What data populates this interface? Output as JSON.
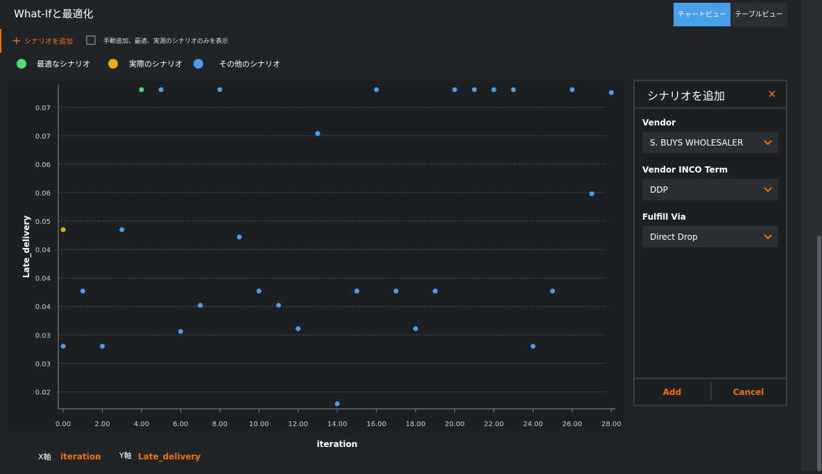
{
  "header": {
    "title": "What-Ifと最適化",
    "views": [
      "チャートビュー",
      "テーブルビュー"
    ]
  },
  "toolbar": {
    "add_scenario": "シナリオを追加",
    "filter_label": "手動追加、最適、実測のシナリオのみを表示"
  },
  "chart_data": {
    "type": "scatter",
    "xlabel": "iteration",
    "ylabel": "Late_delivery",
    "series": [
      {
        "name": "最適なシナリオ",
        "color": "#4fdc7a",
        "x": [
          4
        ],
        "values": [
          0.0731
        ]
      },
      {
        "name": "実際のシナリオ",
        "color": "#e0b015",
        "x": [
          0
        ],
        "values": [
          0.0485
        ]
      },
      {
        "name": "その他のシナリオ",
        "color": "#4a9fea",
        "x": [
          0,
          1,
          2,
          3,
          5,
          6,
          7,
          8,
          9,
          10,
          11,
          12,
          13,
          14,
          15,
          16,
          17,
          18,
          19,
          20,
          21,
          22,
          23,
          24,
          25,
          26,
          27,
          28
        ],
        "values": [
          0.028,
          0.0377,
          0.028,
          0.0485,
          0.0731,
          0.0306,
          0.0352,
          0.0731,
          0.0472,
          0.0377,
          0.0352,
          0.0311,
          0.0654,
          0.0179,
          0.0377,
          0.0731,
          0.0377,
          0.0311,
          0.0377,
          0.0731,
          0.0731,
          0.0731,
          0.0731,
          0.028,
          0.0377,
          0.0731,
          0.0548,
          0.0726
        ]
      }
    ],
    "xlim": [
      -0.25,
      28.2
    ],
    "ylim": [
      0.017,
      0.074
    ],
    "xticks": [
      {
        "value": 0,
        "label": "0.00"
      },
      {
        "value": 2,
        "label": "2.00"
      },
      {
        "value": 4,
        "label": "4.00"
      },
      {
        "value": 6,
        "label": "6.00"
      },
      {
        "value": 8,
        "label": "8.00"
      },
      {
        "value": 10,
        "label": "10.00"
      },
      {
        "value": 12,
        "label": "12.00"
      },
      {
        "value": 14,
        "label": "14.00"
      },
      {
        "value": 16,
        "label": "16.00"
      },
      {
        "value": 18,
        "label": "18.00"
      },
      {
        "value": 20,
        "label": "20.00"
      },
      {
        "value": 22,
        "label": "22.00"
      },
      {
        "value": 24,
        "label": "24.00"
      },
      {
        "value": 26,
        "label": "26.00"
      },
      {
        "value": 28,
        "label": "28.00"
      }
    ],
    "yticks": [
      0.02,
      {
        "value": 0.025,
        "label": "0.03"
      },
      0.03,
      {
        "value": 0.035,
        "label": "0.04"
      },
      0.04,
      {
        "value": 0.045,
        "label": "0.04"
      },
      0.05,
      {
        "value": 0.055,
        "label": "0.06"
      },
      0.06,
      {
        "value": 0.065,
        "label": "0.07"
      },
      0.07
    ],
    "grid": true
  },
  "panel": {
    "title": "シナリオを追加",
    "fields": [
      {
        "label": "Vendor",
        "value": "S. BUYS WHOLESALER"
      },
      {
        "label": "Vendor INCO Term",
        "value": "DDP"
      },
      {
        "label": "Fulfill Via",
        "value": "Direct Drop"
      }
    ],
    "add": "Add",
    "cancel": "Cancel"
  },
  "axis_selectors": {
    "x_label": "X軸",
    "x_value": "iteration",
    "y_label": "Y軸",
    "y_value": "Late_delivery"
  }
}
